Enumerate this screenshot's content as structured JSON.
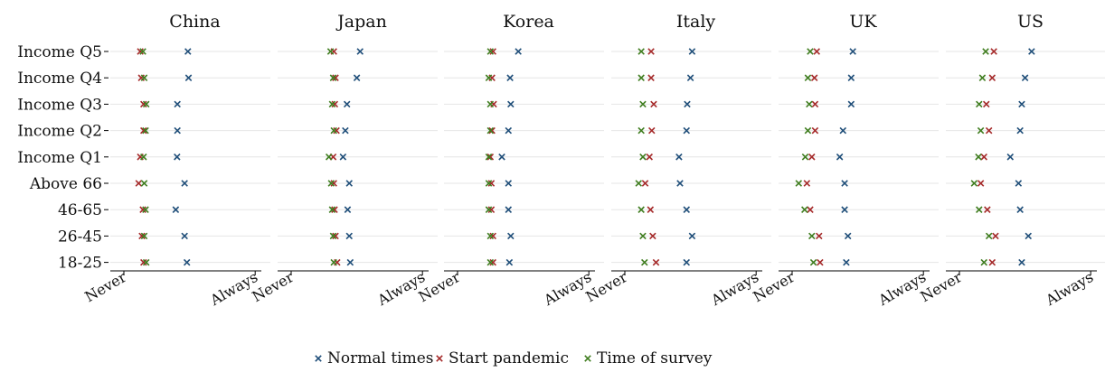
{
  "chart_data": {
    "type": "scatter",
    "x_ticks": [
      "Never",
      "Always"
    ],
    "xlim": [
      1,
      5
    ],
    "categories": [
      "Income Q5",
      "Income Q4",
      "Income Q3",
      "Income Q2",
      "Income Q1",
      "Above 66",
      "46-65",
      "26-45",
      "18-25"
    ],
    "grid": "horizontal",
    "legend_position": "bottom",
    "series": [
      {
        "name": "Normal times",
        "color": "#1f4e79"
      },
      {
        "name": "Start pandemic",
        "color": "#a52a2a"
      },
      {
        "name": "Time of survey",
        "color": "#3f7d1f"
      }
    ],
    "panels": [
      {
        "title": "China",
        "values": {
          "Normal times": [
            2.95,
            2.97,
            2.63,
            2.63,
            2.62,
            2.85,
            2.58,
            2.85,
            2.92
          ],
          "Start pandemic": [
            1.5,
            1.53,
            1.6,
            1.6,
            1.5,
            1.45,
            1.58,
            1.55,
            1.6
          ],
          "Time of survey": [
            1.58,
            1.62,
            1.68,
            1.66,
            1.6,
            1.62,
            1.66,
            1.62,
            1.68
          ]
        }
      },
      {
        "title": "Japan",
        "values": {
          "Normal times": [
            3.1,
            3.0,
            2.7,
            2.65,
            2.58,
            2.77,
            2.72,
            2.77,
            2.8
          ],
          "Start pandemic": [
            2.3,
            2.35,
            2.33,
            2.38,
            2.28,
            2.3,
            2.32,
            2.35,
            2.4
          ],
          "Time of survey": [
            2.2,
            2.28,
            2.25,
            2.3,
            2.15,
            2.22,
            2.25,
            2.28,
            2.3
          ]
        }
      },
      {
        "title": "Korea",
        "values": {
          "Normal times": [
            2.85,
            2.6,
            2.62,
            2.55,
            2.35,
            2.55,
            2.55,
            2.62,
            2.58
          ],
          "Start pandemic": [
            2.08,
            2.05,
            2.1,
            2.05,
            2.0,
            2.03,
            2.03,
            2.08,
            2.08
          ],
          "Time of survey": [
            2.0,
            1.95,
            2.0,
            2.0,
            1.95,
            1.95,
            1.95,
            2.0,
            2.0
          ]
        }
      },
      {
        "title": "Italy",
        "values": {
          "Normal times": [
            3.05,
            3.0,
            2.9,
            2.88,
            2.65,
            2.68,
            2.88,
            3.05,
            2.88
          ],
          "Start pandemic": [
            1.8,
            1.8,
            1.88,
            1.82,
            1.75,
            1.62,
            1.78,
            1.85,
            1.95
          ],
          "Time of survey": [
            1.5,
            1.5,
            1.55,
            1.5,
            1.55,
            1.42,
            1.5,
            1.55,
            1.6
          ]
        }
      },
      {
        "title": "UK",
        "values": {
          "Normal times": [
            2.85,
            2.8,
            2.8,
            2.55,
            2.45,
            2.6,
            2.6,
            2.7,
            2.65
          ],
          "Start pandemic": [
            1.75,
            1.68,
            1.7,
            1.7,
            1.6,
            1.45,
            1.55,
            1.82,
            1.85
          ],
          "Time of survey": [
            1.55,
            1.48,
            1.52,
            1.48,
            1.4,
            1.2,
            1.38,
            1.6,
            1.65
          ]
        }
      },
      {
        "title": "US",
        "values": {
          "Normal times": [
            3.2,
            3.0,
            2.9,
            2.85,
            2.55,
            2.8,
            2.85,
            3.1,
            2.9
          ],
          "Start pandemic": [
            2.05,
            2.0,
            1.82,
            1.9,
            1.75,
            1.65,
            1.85,
            2.1,
            2.0
          ],
          "Time of survey": [
            1.8,
            1.7,
            1.6,
            1.65,
            1.58,
            1.45,
            1.6,
            1.9,
            1.75
          ]
        }
      }
    ]
  }
}
